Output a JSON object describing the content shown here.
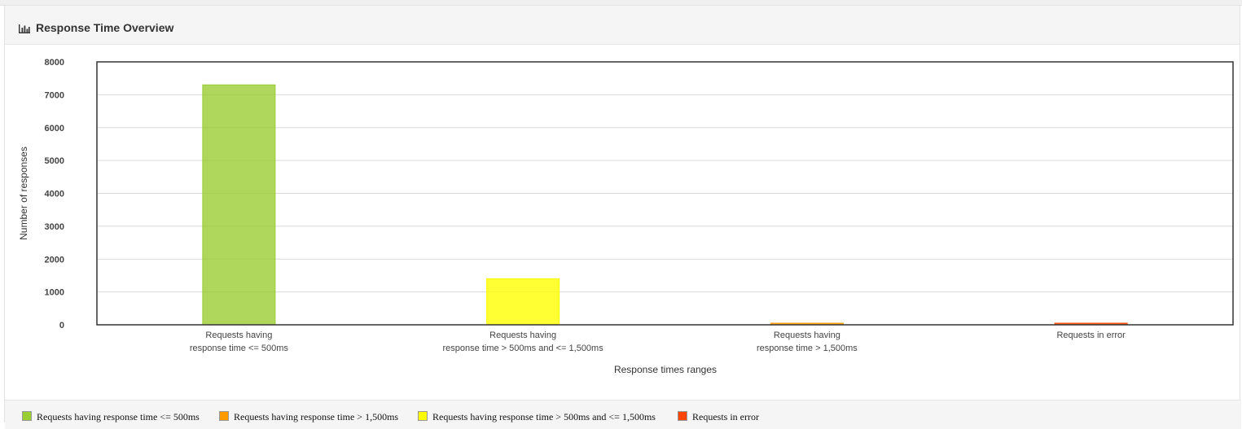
{
  "panel": {
    "title": "Response Time Overview"
  },
  "icons": {
    "title": "bar-chart-icon"
  },
  "chart_data": {
    "type": "bar",
    "categories": [
      [
        "Requests having",
        "response time <= 500ms"
      ],
      [
        "Requests having",
        "response time > 500ms and <= 1,500ms"
      ],
      [
        "Requests having",
        "response time > 1,500ms"
      ],
      [
        "Requests in error"
      ]
    ],
    "values": [
      7300,
      1400,
      25,
      40
    ],
    "colors": [
      "#9ACD32",
      "#FFFF00",
      "#FF9900",
      "#FF4500"
    ],
    "ylabel": "Number of responses",
    "xlabel": "Response times ranges",
    "ylim": [
      0,
      8000
    ],
    "yticks": [
      0,
      1000,
      2000,
      3000,
      4000,
      5000,
      6000,
      7000,
      8000
    ],
    "grid": true,
    "legend_position": "bottom",
    "legend": [
      {
        "label": "Requests having response time <= 500ms",
        "color": "#9ACD32"
      },
      {
        "label": "Requests having response time > 1,500ms",
        "color": "#FF9900"
      },
      {
        "label": "Requests having response time > 500ms and <= 1,500ms",
        "color": "#FFFF00"
      },
      {
        "label": "Requests in error",
        "color": "#FF4500"
      }
    ]
  }
}
